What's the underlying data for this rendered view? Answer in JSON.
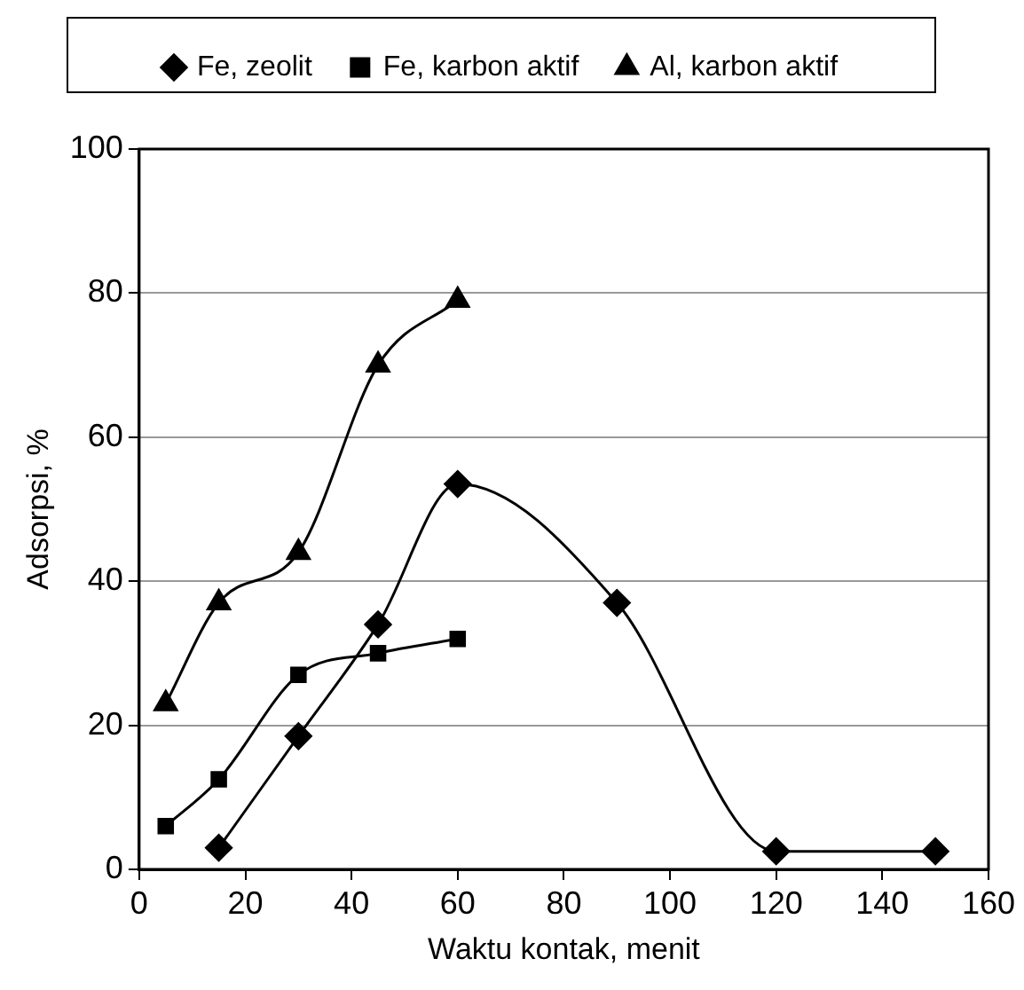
{
  "chart_data": {
    "type": "line",
    "xlabel": "Waktu kontak, menit",
    "ylabel": "Adsorpsi, %",
    "xlim": [
      0,
      160
    ],
    "xticks": [
      0,
      20,
      40,
      60,
      80,
      100,
      120,
      140,
      160
    ],
    "ylim": [
      0,
      100
    ],
    "yticks": [
      0,
      20,
      40,
      60,
      80,
      100
    ],
    "grid": "y",
    "legend": "top",
    "series": [
      {
        "name": "Fe, zeolit",
        "color": "#000000",
        "marker": "diamond",
        "x": [
          15,
          30,
          45,
          60,
          90,
          120,
          150
        ],
        "values": [
          3,
          18.5,
          34,
          53.5,
          37,
          2.5,
          2.5
        ]
      },
      {
        "name": "Fe, karbon aktif",
        "color": "#000000",
        "marker": "square",
        "x": [
          5,
          15,
          30,
          45,
          60
        ],
        "values": [
          6,
          12.5,
          27,
          30,
          32
        ]
      },
      {
        "name": "Al, karbon aktif",
        "color": "#000000",
        "marker": "triangle",
        "x": [
          5,
          15,
          30,
          45,
          60
        ],
        "values": [
          23,
          37,
          44,
          70,
          79
        ]
      }
    ]
  }
}
